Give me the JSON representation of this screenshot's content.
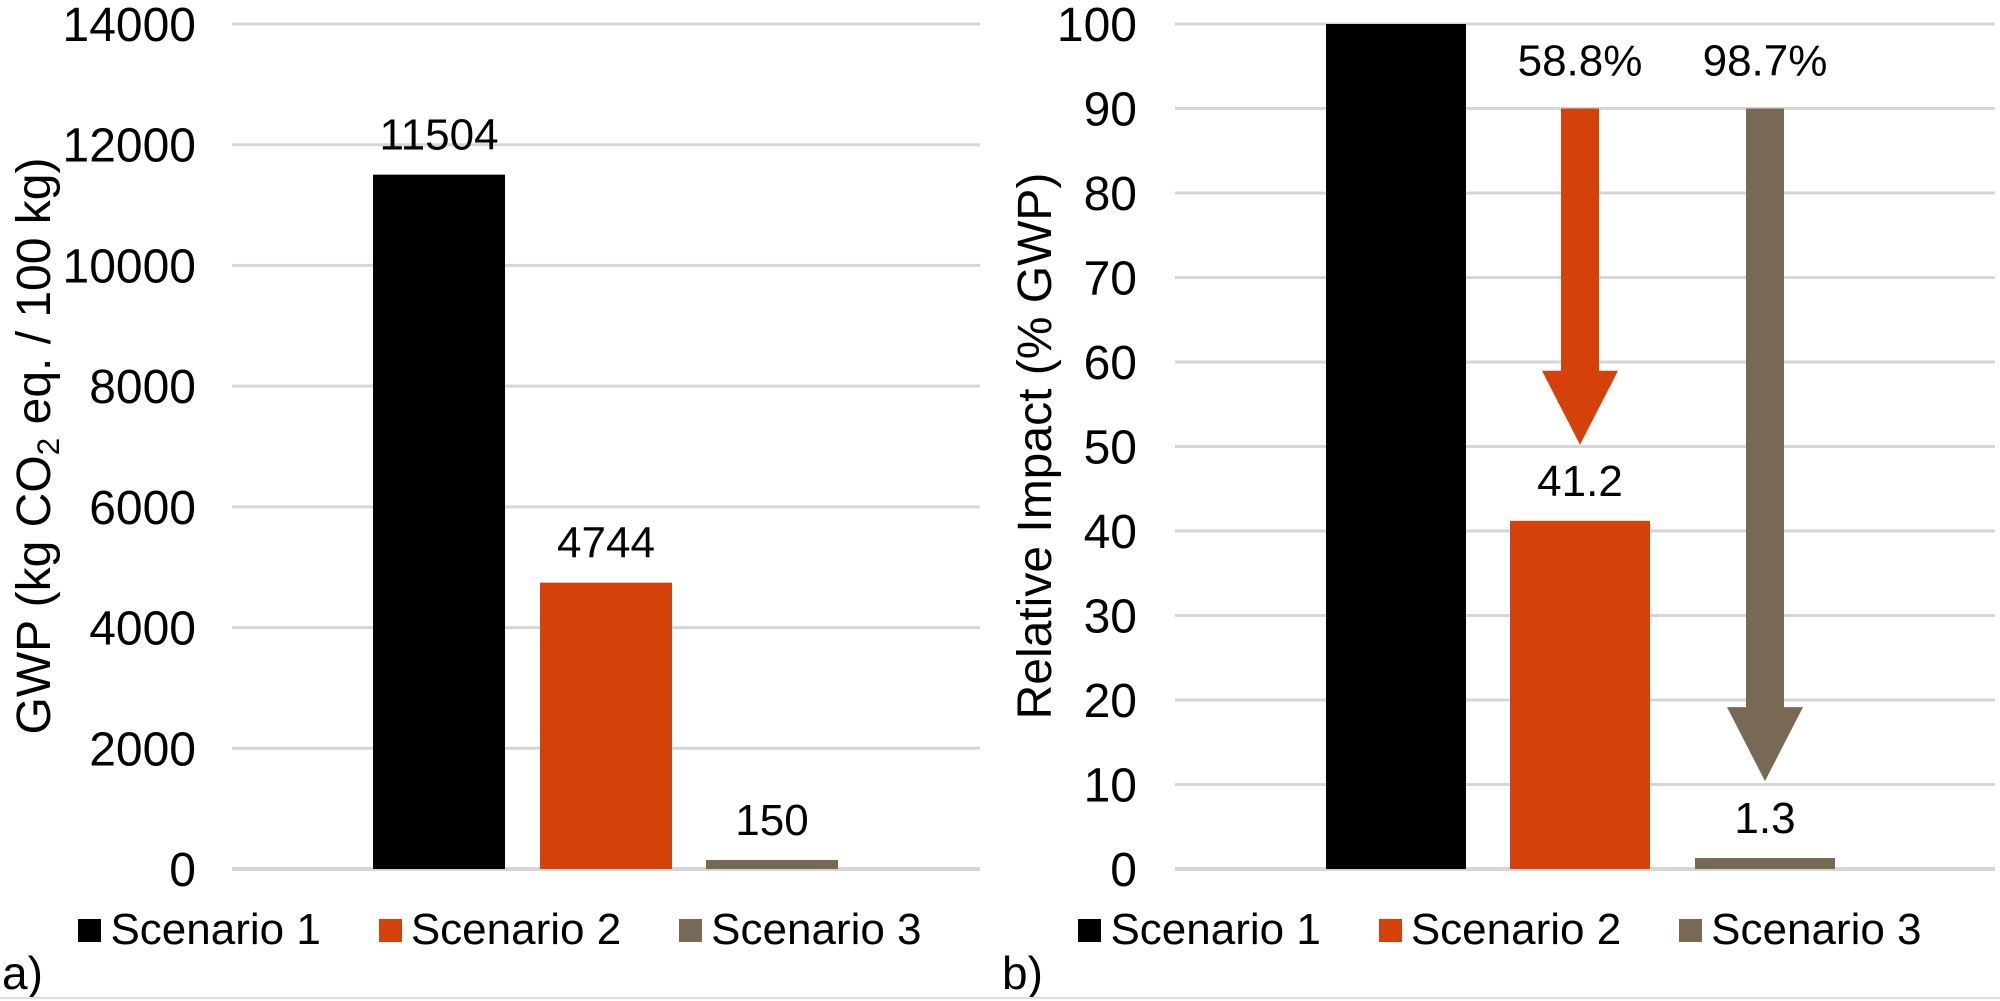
{
  "chart_data": [
    {
      "id": "a",
      "type": "bar",
      "panel_label": "a)",
      "ylabel": "GWP (kg CO2 eq. / 100 kg)",
      "ylabel_parts": {
        "prefix": "GWP (kg CO",
        "subscript": "2",
        "suffix": " eq. / 100 kg)"
      },
      "categories": [
        "Scenario 1",
        "Scenario 2",
        "Scenario 3"
      ],
      "values": [
        11504,
        4744,
        150
      ],
      "bar_labels": [
        "11504",
        "4744",
        "150"
      ],
      "colors": [
        "#000000",
        "#D4410B",
        "#786955"
      ],
      "ylim": [
        0,
        14000
      ],
      "ytick_step": 2000,
      "ytick_labels": [
        "0",
        "2000",
        "4000",
        "6000",
        "8000",
        "10000",
        "12000",
        "14000"
      ],
      "grid": true,
      "legend_position": "bottom",
      "legend": [
        "Scenario 1",
        "Scenario 2",
        "Scenario 3"
      ],
      "arrows": []
    },
    {
      "id": "b",
      "type": "bar",
      "panel_label": "b)",
      "ylabel": "Relative Impact (% GWP)",
      "ylabel_parts": {
        "prefix": "Relative Impact (% GWP)",
        "subscript": "",
        "suffix": ""
      },
      "categories": [
        "Scenario 1",
        "Scenario 2",
        "Scenario 3"
      ],
      "values": [
        100,
        41.2,
        1.3
      ],
      "bar_labels": [
        "",
        "41.2",
        "1.3"
      ],
      "colors": [
        "#000000",
        "#D4410B",
        "#786955"
      ],
      "ylim": [
        0,
        100
      ],
      "ytick_step": 10,
      "ytick_labels": [
        "0",
        "10",
        "20",
        "30",
        "40",
        "50",
        "60",
        "70",
        "80",
        "90",
        "100"
      ],
      "grid": true,
      "legend_position": "bottom",
      "legend": [
        "Scenario 1",
        "Scenario 2",
        "Scenario 3"
      ],
      "arrows": [
        {
          "label": "58.8%",
          "color": "#D4410B",
          "category_index": 1,
          "from_value": 90,
          "to_value": 50.2
        },
        {
          "label": "98.7%",
          "color": "#786955",
          "category_index": 2,
          "from_value": 90,
          "to_value": 10.4
        }
      ]
    }
  ]
}
